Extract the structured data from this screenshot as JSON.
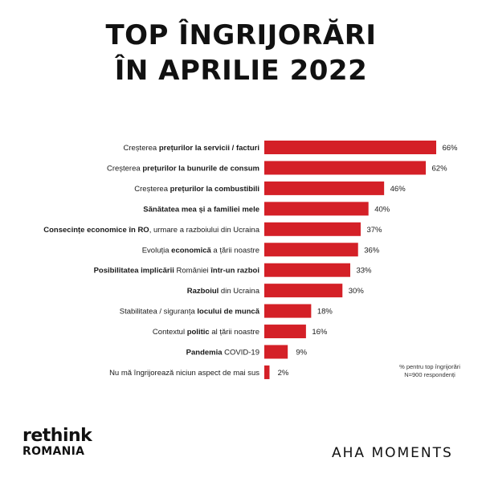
{
  "title_lines": [
    "TOP ÎNGRIJORĂRI",
    "ÎN APRILIE 2022"
  ],
  "colors": {
    "bar": "#d42027",
    "text": "#1a1a1a",
    "background": "#ffffff"
  },
  "chart_data": {
    "type": "bar",
    "orientation": "horizontal",
    "title": "TOP ÎNGRIJORĂRI ÎN APRILIE 2022",
    "categories": [
      [
        {
          "t": "Creșterea ",
          "b": false
        },
        {
          "t": "prețurilor la servicii / facturi",
          "b": true
        }
      ],
      [
        {
          "t": "Creșterea ",
          "b": false
        },
        {
          "t": "prețurilor la bunurile de consum",
          "b": true
        }
      ],
      [
        {
          "t": "Creșterea ",
          "b": false
        },
        {
          "t": "prețurilor la combustibili",
          "b": true
        }
      ],
      [
        {
          "t": "Sănătatea mea și a familiei mele",
          "b": true
        }
      ],
      [
        {
          "t": "Consecințe economice în RO",
          "b": true
        },
        {
          "t": ", urmare a razboiului din Ucraina",
          "b": false
        }
      ],
      [
        {
          "t": "Evoluția ",
          "b": false
        },
        {
          "t": "economică",
          "b": true
        },
        {
          "t": " a țării noastre",
          "b": false
        }
      ],
      [
        {
          "t": "Posibilitatea implicării",
          "b": true
        },
        {
          "t": " României ",
          "b": false
        },
        {
          "t": "într-un razboi",
          "b": true
        }
      ],
      [
        {
          "t": "Razboiul",
          "b": true
        },
        {
          "t": " din Ucraina",
          "b": false
        }
      ],
      [
        {
          "t": "Stabilitatea / siguranța ",
          "b": false
        },
        {
          "t": "locului de muncă",
          "b": true
        }
      ],
      [
        {
          "t": "Contextul ",
          "b": false
        },
        {
          "t": "politic",
          "b": true
        },
        {
          "t": " al țării noastre",
          "b": false
        }
      ],
      [
        {
          "t": "Pandemia",
          "b": true
        },
        {
          "t": " COVID-19",
          "b": false
        }
      ],
      [
        {
          "t": "Nu mă îngrijorează niciun aspect de mai sus",
          "b": false
        }
      ]
    ],
    "values": [
      66,
      62,
      46,
      40,
      37,
      36,
      33,
      30,
      18,
      16,
      9,
      2
    ],
    "value_labels": [
      "66%",
      "62%",
      "46%",
      "40%",
      "37%",
      "36%",
      "33%",
      "30%",
      "18%",
      "16%",
      "9%",
      "2%"
    ],
    "unit": "%",
    "xlim": [
      0,
      66
    ],
    "grid": false,
    "legend": "none"
  },
  "note_lines": [
    "% pentru top îngrijorări",
    "N=900 respondenți"
  ],
  "logos": {
    "rethink": "rethink",
    "romania": "ROMANIA",
    "aha": "AHA MOMENTS"
  }
}
